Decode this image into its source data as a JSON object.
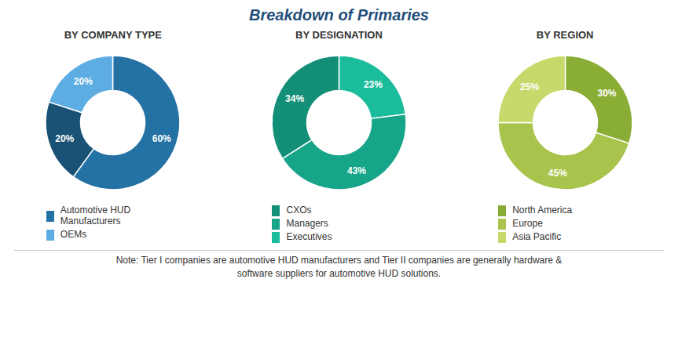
{
  "title": "Breakdown of Primaries",
  "annotations": [
    "Note: Tier I companies are automotive HUD manufacturers and Tier II companies are generally hardware &",
    "software suppliers for automotive HUD solutions."
  ],
  "chart_data": [
    {
      "type": "pie",
      "title": "BY COMPANY TYPE",
      "values": [
        60,
        20,
        20
      ],
      "value_labels": [
        "60%",
        "20%",
        "20%"
      ],
      "colors": [
        "#2471A3",
        "#1A5276",
        "#5DADE2"
      ],
      "data_labels": true,
      "legend_items": [
        {
          "name": "Automotive HUD\nManufacturers",
          "color": "#2471A3"
        },
        {
          "name": "OEMs",
          "color": "#5DADE2"
        }
      ]
    },
    {
      "type": "pie",
      "title": "BY DESIGNATION",
      "values": [
        23,
        43,
        34
      ],
      "value_labels": [
        "23%",
        "43%",
        "34%"
      ],
      "colors": [
        "#1ABC9C",
        "#17A589",
        "#148F77"
      ],
      "data_labels": true,
      "legend_items": [
        {
          "name": "CXOs",
          "color": "#148F77"
        },
        {
          "name": "Managers",
          "color": "#17A589"
        },
        {
          "name": "Executives",
          "color": "#1ABC9C"
        }
      ]
    },
    {
      "type": "pie",
      "title": "BY REGION",
      "values": [
        30,
        45,
        25
      ],
      "value_labels": [
        "30%",
        "45%",
        "25%"
      ],
      "colors": [
        "#8AAD35",
        "#A8C44C",
        "#C8D96B"
      ],
      "data_labels": true,
      "legend_items": [
        {
          "name": "North America",
          "color": "#8AAD35"
        },
        {
          "name": "Europe",
          "color": "#A8C44C"
        },
        {
          "name": "Asia Pacific",
          "color": "#C8D96B"
        }
      ]
    }
  ]
}
